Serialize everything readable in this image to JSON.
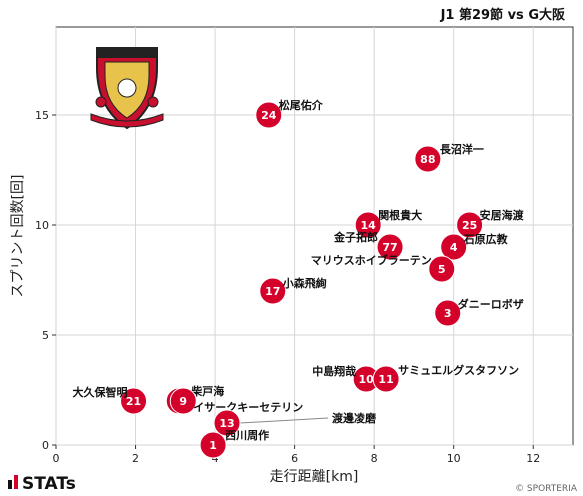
{
  "chart_data": {
    "type": "scatter",
    "title": "J1 第29節 vs G大阪",
    "xlabel": "走行距離[km]",
    "ylabel": "スプリント回数[回]",
    "xlim": [
      0,
      13
    ],
    "ylim": [
      0,
      19
    ],
    "xticks": [
      0,
      2,
      4,
      6,
      8,
      10,
      12
    ],
    "yticks": [
      0,
      5,
      10,
      15
    ],
    "grid": true,
    "marker_color": "#d4022a",
    "points": [
      {
        "number": "24",
        "name": "松尾佑介",
        "x": 5.35,
        "y": 15
      },
      {
        "number": "88",
        "name": "長沼洋一",
        "x": 9.35,
        "y": 13
      },
      {
        "number": "14",
        "name": "関根貴大",
        "x": 7.85,
        "y": 10
      },
      {
        "number": "25",
        "name": "安居海渡",
        "x": 10.4,
        "y": 10
      },
      {
        "number": "77",
        "name": "金子拓郎",
        "x": 8.4,
        "y": 9
      },
      {
        "number": "4",
        "name": "石原広教",
        "x": 10.0,
        "y": 9
      },
      {
        "number": "5",
        "name": "マリウスホイブラーテン",
        "x": 9.7,
        "y": 8
      },
      {
        "number": "17",
        "name": "小森飛絢",
        "x": 5.45,
        "y": 7
      },
      {
        "number": "3",
        "name": "ダニーロボザ",
        "x": 9.85,
        "y": 6
      },
      {
        "number": "10",
        "name": "中島翔哉",
        "x": 7.8,
        "y": 3
      },
      {
        "number": "11",
        "name": "サミュエルグスタフソン",
        "x": 8.3,
        "y": 3
      },
      {
        "number": "21",
        "name": "大久保智明",
        "x": 1.95,
        "y": 2
      },
      {
        "number": "22",
        "name": "柴戸海",
        "x": 3.1,
        "y": 2
      },
      {
        "number": "9",
        "name": "イサークキーセテリン",
        "x": 3.2,
        "y": 2
      },
      {
        "number": "13",
        "name": "渡邊凌磨",
        "x": 4.3,
        "y": 1
      },
      {
        "number": "1",
        "name": "西川周作",
        "x": 3.95,
        "y": 0
      }
    ]
  },
  "brand": {
    "label": "STATs",
    "copyright": "© SPORTERIA",
    "logo_icon": "red-diamonds-crest-icon",
    "stats_icon": "bar-chart-icon"
  }
}
